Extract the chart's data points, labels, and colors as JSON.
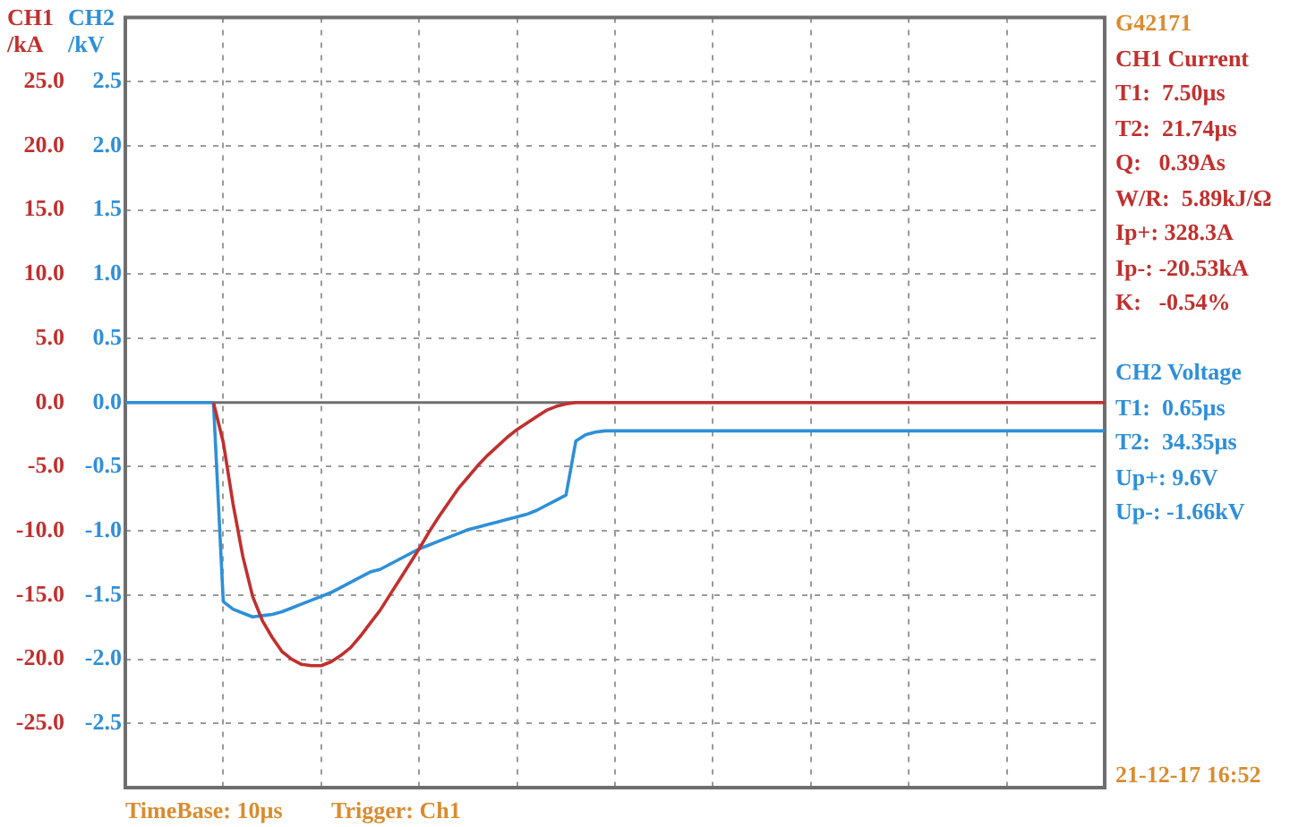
{
  "chart_data": {
    "type": "line",
    "ylabel": "CH1 /kA",
    "y2label": "CH2 /kV",
    "categories": [
      null,
      null,
      null,
      null,
      null,
      null,
      null,
      null,
      null,
      null,
      null,
      null,
      null,
      null,
      null,
      null,
      null,
      null,
      null,
      null,
      null,
      null,
      null,
      null,
      null,
      null,
      null,
      null,
      null,
      null,
      null,
      null,
      null,
      null,
      null,
      null,
      null,
      null,
      null,
      null,
      null,
      null,
      null,
      null,
      null,
      null,
      null,
      null,
      null,
      null,
      null,
      null,
      null,
      null,
      null,
      null,
      null,
      null,
      null,
      null,
      null,
      null,
      null,
      null,
      null,
      null,
      null,
      null,
      null,
      null,
      null,
      null,
      null,
      null,
      null,
      null,
      null,
      null,
      null,
      null,
      null,
      null,
      null,
      null,
      null,
      null,
      null,
      null,
      null,
      null,
      null,
      null,
      null,
      null,
      null,
      null,
      null,
      null,
      null,
      null,
      null
    ],
    "series": [
      {
        "name": "CH1 Current",
        "color": "#c0302e",
        "values": [
          null,
          null,
          null,
          null,
          null,
          null,
          null,
          null,
          null,
          0,
          -3.1,
          -7.9,
          -12,
          -15.1,
          -17,
          -18.3,
          -19.4,
          -20,
          -20.4,
          -20.5,
          -20.5,
          -20.2,
          -19.7,
          -19.1,
          -18.2,
          -17.2,
          -16.2,
          -15,
          -13.8,
          -12.6,
          -11.4,
          -10.1,
          -8.9,
          -7.8,
          -6.7,
          -5.8,
          -4.9,
          -4.1,
          -3.4,
          -2.7,
          -2.1,
          -1.6,
          -1.1,
          -0.6,
          -0.3,
          -0.1,
          0,
          0,
          0,
          0,
          0,
          0,
          0,
          0,
          0,
          0,
          0,
          0,
          0,
          0,
          0,
          0,
          0,
          0,
          0,
          0,
          0,
          0,
          0,
          0,
          0,
          0,
          0,
          0,
          0,
          0,
          0,
          0,
          0,
          0,
          0,
          0,
          0,
          0,
          0,
          0,
          0,
          0,
          0,
          0,
          0,
          0,
          0,
          0,
          0,
          0,
          0,
          0,
          0,
          0,
          0
        ]
      },
      {
        "name": "CH2 Voltage",
        "color": "#2e8fd8",
        "axis": "y2",
        "values": [
          0,
          0,
          0,
          0,
          0,
          0,
          0,
          0,
          0,
          0,
          -1.55,
          -1.61,
          -1.64,
          -1.67,
          -1.66,
          -1.65,
          -1.63,
          -1.6,
          -1.57,
          -1.54,
          -1.51,
          -1.48,
          -1.44,
          -1.4,
          -1.36,
          -1.32,
          -1.3,
          -1.26,
          -1.22,
          -1.18,
          -1.14,
          -1.11,
          -1.08,
          -1.05,
          -1.02,
          -0.99,
          -0.97,
          -0.95,
          -0.93,
          -0.91,
          -0.89,
          -0.87,
          -0.84,
          -0.8,
          -0.76,
          -0.72,
          -0.3,
          -0.25,
          -0.23,
          -0.22,
          -0.22,
          -0.22,
          -0.22,
          -0.22,
          -0.22,
          -0.22,
          -0.22,
          -0.22,
          -0.22,
          -0.22,
          -0.22,
          -0.22,
          -0.22,
          -0.22,
          -0.22,
          -0.22,
          -0.22,
          -0.22,
          -0.22,
          -0.22,
          -0.22,
          -0.22,
          -0.22,
          -0.22,
          -0.22,
          -0.22,
          -0.22,
          -0.22,
          -0.22,
          -0.22,
          -0.22,
          -0.22,
          -0.22,
          -0.22,
          -0.22,
          -0.22,
          -0.22,
          -0.22,
          -0.22,
          -0.22,
          -0.22,
          -0.22,
          -0.22,
          -0.22,
          -0.22,
          -0.22,
          -0.22,
          -0.22,
          -0.22,
          -0.22,
          -0.22
        ]
      }
    ],
    "ylim": [
      -30,
      30
    ],
    "yticks": [
      {
        "value": -25,
        "label": "-25.0"
      },
      {
        "value": -20,
        "label": "-20.0"
      },
      {
        "value": -15,
        "label": "-15.0"
      },
      {
        "value": -10,
        "label": "-10.0"
      },
      {
        "value": -5,
        "label": "-5.0"
      },
      {
        "value": 0,
        "label": "0.0"
      },
      {
        "value": 5,
        "label": "5.0"
      },
      {
        "value": 10,
        "label": "10.0"
      },
      {
        "value": 15,
        "label": "15.0"
      },
      {
        "value": 20,
        "label": "20.0"
      },
      {
        "value": 25,
        "label": "25.0"
      }
    ],
    "y2lim": [
      -3,
      3
    ],
    "y2ticks": [
      -2.5,
      {
        "value": -2,
        "label": "-2.0"
      },
      -1.5,
      {
        "value": -1,
        "label": "-1.0"
      },
      -0.5,
      {
        "value": 0,
        "label": "0.0"
      },
      0.5,
      {
        "value": 1,
        "label": "1.0"
      },
      1.5,
      {
        "value": 2,
        "label": "2.0"
      },
      2.5
    ],
    "grid": true,
    "marker": "none",
    "line_style": "solid",
    "annotations": [
      "G42171",
      "T1:  7.50µs",
      "T2:  21.74µs",
      "Q:   0.39As",
      "W/R:  5.89kJ/Ω",
      "Ip+: 328.3A",
      "Ip-: -20.53kA",
      "K:   -0.54%",
      "T1:  0.65µs",
      "T2:  34.35µs",
      "Up+: 9.6V",
      "Up-: -1.66kV",
      "TimeBase: 10µs",
      "Trigger: Ch1",
      "21-12-17 16:52"
    ]
  }
}
